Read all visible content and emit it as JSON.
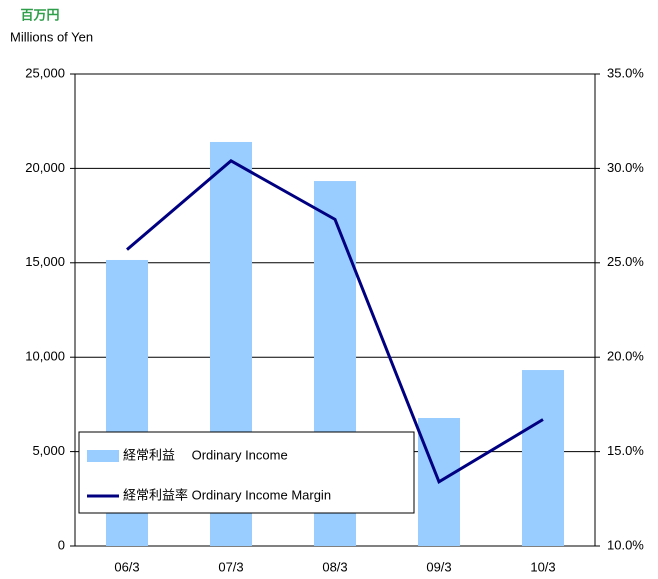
{
  "chart_data": {
    "type": "bar_line",
    "unit_label_jp": "百万円",
    "unit_label": "Millions of Yen",
    "categories": [
      "06/3",
      "07/3",
      "08/3",
      "09/3",
      "10/3"
    ],
    "series": [
      {
        "name": "経常利益　 Ordinary Income",
        "type": "bar",
        "color": "#99ccff",
        "values": [
          15150,
          21400,
          19330,
          6780,
          9320
        ]
      },
      {
        "name": "経常利益率 Ordinary Income Margin",
        "type": "line",
        "axis": "y2",
        "color": "#000080",
        "values": [
          25.7,
          30.4,
          27.3,
          13.4,
          16.7
        ]
      }
    ],
    "ylim": [
      0,
      25000
    ],
    "yticks": [
      0,
      {
        "value": 5000,
        "label": "5,000"
      },
      {
        "value": 10000,
        "label": "10,000"
      },
      {
        "value": 15000,
        "label": "15,000"
      },
      {
        "value": 20000,
        "label": "20,000"
      },
      {
        "value": 25000,
        "label": "25,000"
      }
    ],
    "y2lim": [
      10,
      35
    ],
    "y2ticks": [
      {
        "value": 10,
        "label": "10.0%"
      },
      {
        "value": 15,
        "label": "15.0%"
      },
      {
        "value": 20,
        "label": "20.0%"
      },
      {
        "value": 25,
        "label": "25.0%"
      },
      {
        "value": 30,
        "label": "30.0%"
      },
      {
        "value": 35,
        "label": "35.0%"
      }
    ],
    "grid": true,
    "legend": "lower left"
  }
}
